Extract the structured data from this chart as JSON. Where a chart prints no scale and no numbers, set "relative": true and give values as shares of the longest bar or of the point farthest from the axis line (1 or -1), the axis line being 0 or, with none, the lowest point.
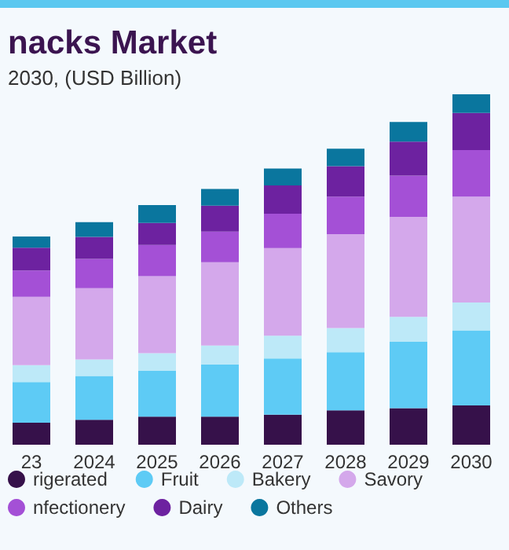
{
  "chart_data": {
    "type": "bar",
    "title": "nacks Market",
    "subtitle": "2030, (USD Billion)",
    "categories": [
      "23",
      "2024",
      "2025",
      "2026",
      "2027",
      "2028",
      "2029",
      "2030"
    ],
    "stacked": true,
    "relative": true,
    "legend": "bottom",
    "series": [
      {
        "name": "rigerated",
        "color": "#36114a",
        "values": [
          0.063,
          0.071,
          0.08,
          0.08,
          0.086,
          0.098,
          0.104,
          0.112
        ]
      },
      {
        "name": "Fruit",
        "color": "#5ecbf5",
        "values": [
          0.116,
          0.125,
          0.131,
          0.149,
          0.16,
          0.166,
          0.19,
          0.214
        ]
      },
      {
        "name": "Bakery",
        "color": "#bde9f8",
        "values": [
          0.048,
          0.047,
          0.05,
          0.054,
          0.065,
          0.069,
          0.071,
          0.08
        ]
      },
      {
        "name": "Savory",
        "color": "#d4a8eb",
        "values": [
          0.195,
          0.204,
          0.22,
          0.238,
          0.25,
          0.268,
          0.285,
          0.302
        ]
      },
      {
        "name": "nfectionery",
        "color": "#a450d6",
        "values": [
          0.075,
          0.083,
          0.089,
          0.087,
          0.098,
          0.107,
          0.118,
          0.133
        ]
      },
      {
        "name": "Dairy",
        "color": "#6d22a0",
        "values": [
          0.065,
          0.063,
          0.063,
          0.074,
          0.081,
          0.087,
          0.097,
          0.106
        ]
      },
      {
        "name": "Others",
        "color": "#0a769e",
        "values": [
          0.032,
          0.042,
          0.051,
          0.048,
          0.048,
          0.05,
          0.056,
          0.053
        ]
      }
    ]
  }
}
